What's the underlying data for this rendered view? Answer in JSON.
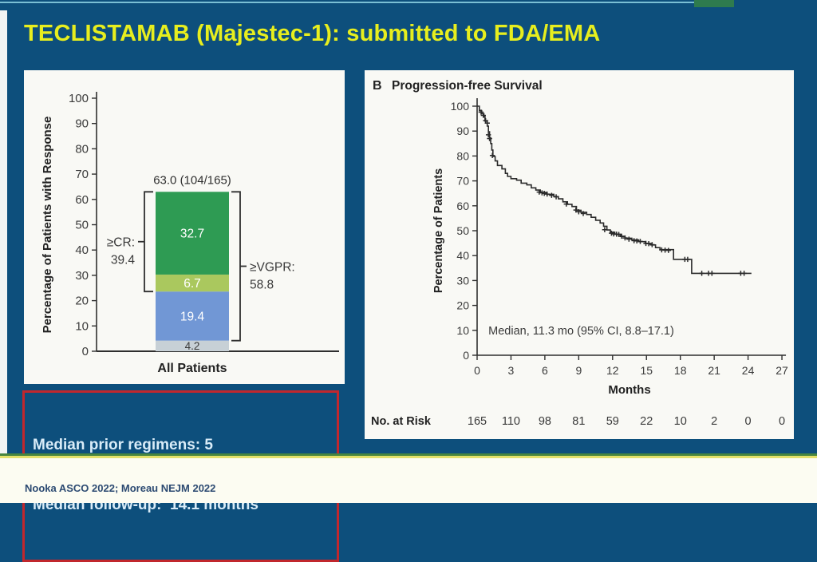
{
  "slide": {
    "title": "TECLISTAMAB (Majestec-1): submitted to FDA/EMA",
    "footer_citation": "Nooka ASCO 2022; Moreau NEJM 2022",
    "highlight": {
      "line1": "Median prior regimens: 5",
      "line2": "Median follow-up:  14.1 months"
    },
    "colors": {
      "slide_bg": "#0d4f7c",
      "title_text": "#e7ee1e",
      "panel_bg": "#f9f9f5",
      "highlight_border": "#c1272d",
      "highlight_text": "#d9ecf8",
      "divider_green": "#47853f",
      "divider_yellow": "#e3e06a",
      "footer_bg": "#fcfcf2",
      "footer_text": "#2c4a72"
    }
  },
  "chart_data": [
    {
      "type": "bar",
      "subtype": "stacked",
      "ylabel": "Percentage of Patients with Response",
      "categories": [
        "All Patients"
      ],
      "ylim": [
        0,
        100
      ],
      "yticks": [
        0,
        10,
        20,
        30,
        40,
        50,
        60,
        70,
        80,
        90,
        100
      ],
      "total_label": "63.0 (104/165)",
      "segments": [
        {
          "value": 4.2,
          "color": "#c7d0d6",
          "label_color": "#3a3a3a"
        },
        {
          "value": 19.4,
          "color": "#7197d5",
          "label_color": "#ffffff"
        },
        {
          "value": 6.7,
          "color": "#aac85e",
          "label_color": "#ffffff"
        },
        {
          "value": 32.7,
          "color": "#2e9b53",
          "label_color": "#ffffff"
        }
      ],
      "brackets": [
        {
          "side": "left",
          "label1": "≥CR:",
          "label2": "39.4",
          "from": 23.6,
          "to": 63.0
        },
        {
          "side": "right",
          "label1": "≥VGPR:",
          "label2": "58.8",
          "from": 4.2,
          "to": 63.0
        }
      ]
    },
    {
      "type": "line",
      "panel_letter": "B",
      "title": "Progression-free Survival",
      "ylabel": "Percentage of Patients",
      "xlabel": "Months",
      "xlim": [
        0,
        27
      ],
      "ylim": [
        0,
        100
      ],
      "xticks": [
        0,
        3,
        6,
        9,
        12,
        15,
        18,
        21,
        24,
        27
      ],
      "yticks": [
        0,
        10,
        20,
        30,
        40,
        50,
        60,
        70,
        80,
        90,
        100
      ],
      "annotation": "Median, 11.3 mo (95% CI, 8.8–17.1)",
      "line_color": "#2b2b2b",
      "km_curve": [
        [
          0,
          100
        ],
        [
          0.2,
          98.2
        ],
        [
          0.4,
          97
        ],
        [
          0.6,
          95.8
        ],
        [
          0.7,
          94
        ],
        [
          0.9,
          92
        ],
        [
          1.0,
          89.7
        ],
        [
          1.1,
          87.3
        ],
        [
          1.2,
          85
        ],
        [
          1.3,
          82.4
        ],
        [
          1.4,
          79.8
        ],
        [
          1.6,
          78
        ],
        [
          1.8,
          76.2
        ],
        [
          2.2,
          74.8
        ],
        [
          2.5,
          73
        ],
        [
          2.7,
          71.8
        ],
        [
          3.0,
          70.9
        ],
        [
          3.5,
          70.3
        ],
        [
          3.9,
          69.1
        ],
        [
          4.4,
          68.4
        ],
        [
          4.8,
          67.2
        ],
        [
          5.2,
          66.3
        ],
        [
          5.6,
          65.4
        ],
        [
          6.2,
          64.6
        ],
        [
          6.8,
          63.7
        ],
        [
          7.2,
          62.8
        ],
        [
          7.6,
          61.6
        ],
        [
          8.0,
          60.6
        ],
        [
          8.4,
          59.7
        ],
        [
          8.8,
          58.2
        ],
        [
          9.2,
          57.4
        ],
        [
          9.7,
          56.5
        ],
        [
          10.1,
          55.4
        ],
        [
          10.5,
          54.2
        ],
        [
          10.9,
          53.1
        ],
        [
          11.2,
          51.8
        ],
        [
          11.5,
          50.3
        ],
        [
          11.8,
          49.4
        ],
        [
          12.2,
          48.6
        ],
        [
          12.7,
          47.7
        ],
        [
          13.1,
          47.0
        ],
        [
          13.7,
          46.3
        ],
        [
          14.3,
          45.6
        ],
        [
          14.9,
          44.9
        ],
        [
          15.4,
          44.3
        ],
        [
          15.8,
          43.2
        ],
        [
          16.2,
          42.4
        ],
        [
          17.4,
          42.0
        ],
        [
          17.4,
          38.5
        ],
        [
          19.0,
          38.5
        ],
        [
          19.0,
          32.9
        ],
        [
          24.3,
          32.9
        ]
      ],
      "censor_marks": [
        [
          0.35,
          97.6
        ],
        [
          0.55,
          96.3
        ],
        [
          0.75,
          94.2
        ],
        [
          0.9,
          93.2
        ],
        [
          1.0,
          88.5
        ],
        [
          1.1,
          87
        ],
        [
          1.35,
          80.2
        ],
        [
          5.5,
          65.5
        ],
        [
          5.75,
          65.2
        ],
        [
          5.95,
          65.0
        ],
        [
          6.2,
          64.7
        ],
        [
          6.6,
          64.2
        ],
        [
          7.0,
          63.6
        ],
        [
          7.9,
          60.7
        ],
        [
          8.75,
          58.3
        ],
        [
          9.0,
          57.6
        ],
        [
          9.4,
          56.9
        ],
        [
          11.3,
          50.4
        ],
        [
          11.9,
          49.0
        ],
        [
          12.1,
          48.7
        ],
        [
          12.35,
          48.6
        ],
        [
          12.55,
          48.5
        ],
        [
          12.8,
          47.8
        ],
        [
          13.1,
          47.1
        ],
        [
          13.45,
          46.6
        ],
        [
          13.9,
          46.0
        ],
        [
          14.15,
          45.9
        ],
        [
          14.45,
          45.7
        ],
        [
          14.95,
          44.9
        ],
        [
          15.2,
          44.8
        ],
        [
          15.5,
          44.4
        ],
        [
          16.35,
          42.3
        ],
        [
          16.65,
          42.2
        ],
        [
          16.95,
          42.1
        ],
        [
          18.4,
          38.5
        ],
        [
          18.65,
          38.5
        ],
        [
          19.9,
          32.9
        ],
        [
          20.5,
          32.9
        ],
        [
          20.8,
          32.9
        ],
        [
          23.35,
          32.9
        ],
        [
          23.65,
          32.9
        ]
      ],
      "at_risk": {
        "label": "No. at Risk",
        "values": [
          165,
          110,
          98,
          81,
          59,
          22,
          10,
          2,
          0,
          0
        ]
      }
    }
  ]
}
